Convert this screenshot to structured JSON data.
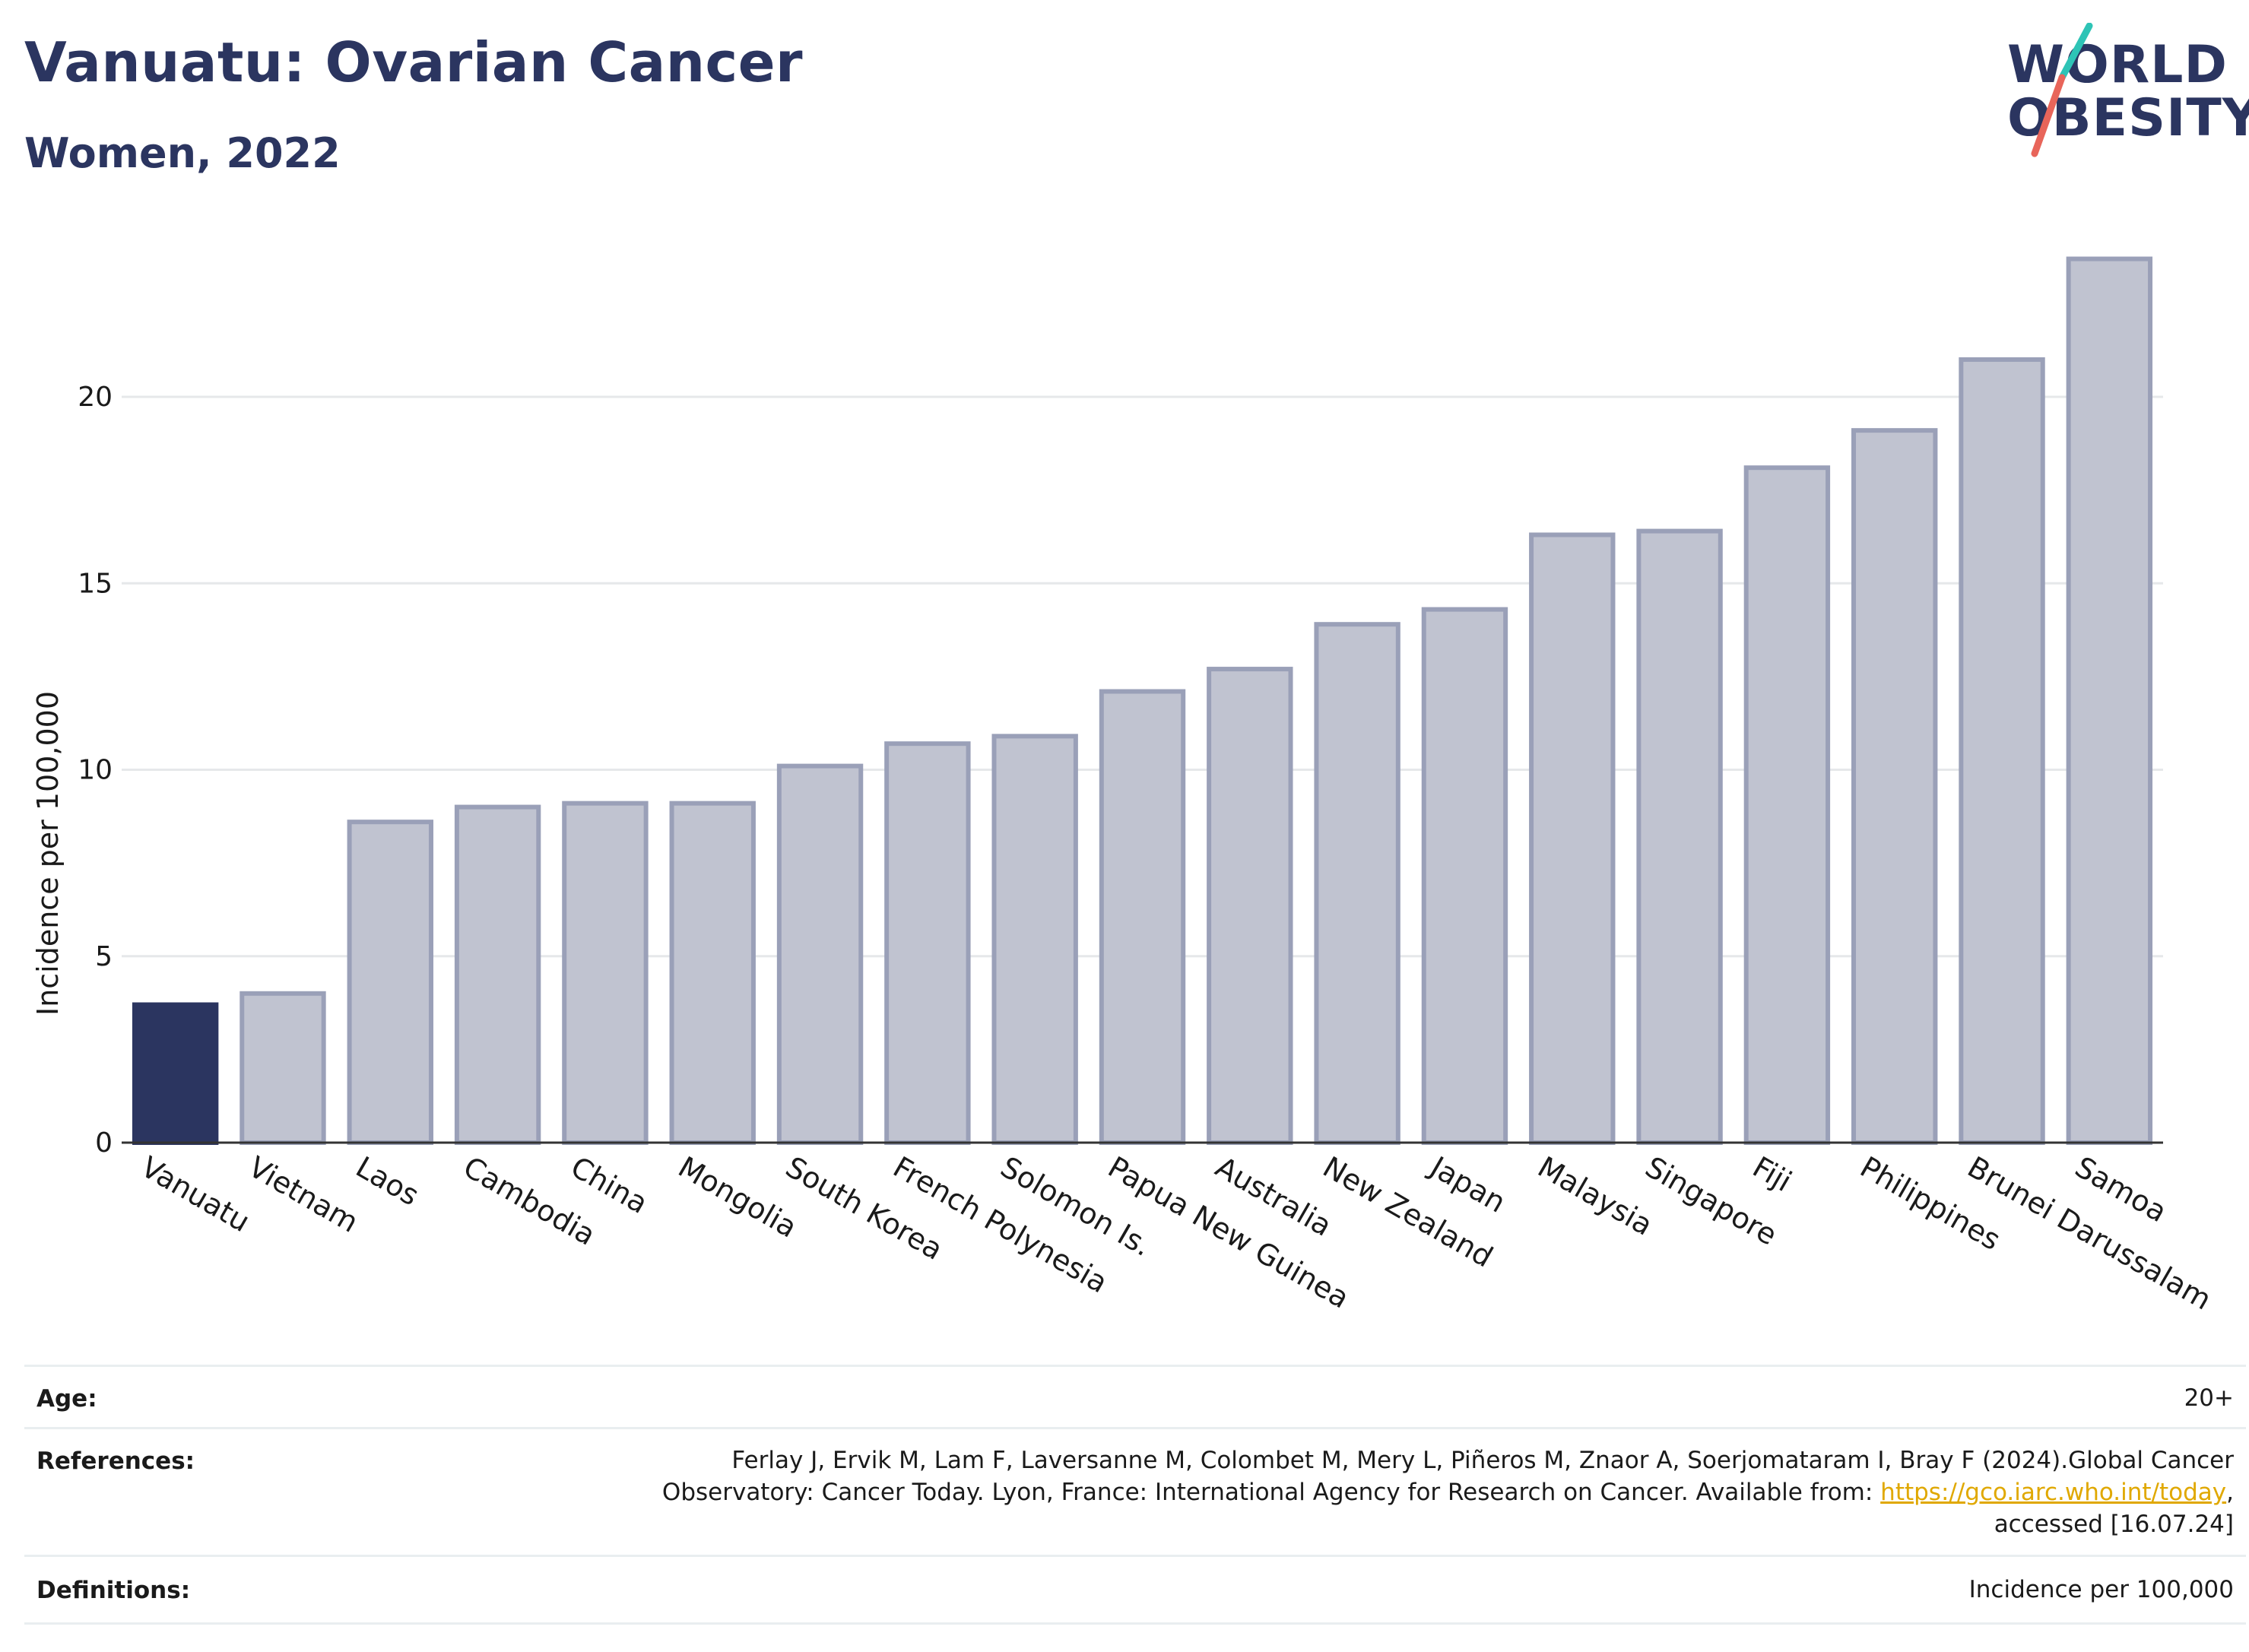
{
  "header": {
    "title": "Vanuatu: Ovarian Cancer",
    "subtitle": "Women, 2022"
  },
  "logo": {
    "line1": "WORLD",
    "line2": "OBESITY",
    "accent_colors": [
      "#2ec4b6",
      "#e8655a"
    ]
  },
  "colors": {
    "highlight_bar": "#2b3560",
    "other_bar_fill": "#c0c3d0",
    "other_bar_stroke": "#9aa0b8",
    "axis_text": "#1a1a1a",
    "gridline": "#e6e8ea",
    "link": "#e0a800"
  },
  "chart_data": {
    "type": "bar",
    "title": "",
    "ylabel": "Incidence per 100,000",
    "xlabel": "",
    "ylim": [
      0,
      24
    ],
    "yticks": [
      0,
      5,
      10,
      15,
      20
    ],
    "grid": true,
    "highlight": "Vanuatu",
    "categories": [
      "Vanuatu",
      "Vietnam",
      "Laos",
      "Cambodia",
      "China",
      "Mongolia",
      "South Korea",
      "French Polynesia",
      "Solomon Is.",
      "Papua New Guinea",
      "Australia",
      "New Zealand",
      "Japan",
      "Malaysia",
      "Singapore",
      "Fiji",
      "Philippines",
      "Brunei Darussalam",
      "Samoa"
    ],
    "values": [
      3.7,
      4.0,
      8.6,
      9.0,
      9.1,
      9.1,
      10.1,
      10.7,
      10.9,
      12.1,
      12.7,
      13.9,
      14.3,
      16.3,
      16.4,
      18.1,
      19.1,
      21.0,
      23.7
    ]
  },
  "footer": {
    "age_label": "Age:",
    "age_value": "20+",
    "references_label": "References:",
    "references_line1": "Ferlay J, Ervik M, Lam F, Laversanne M, Colombet M, Mery L, Piñeros M, Znaor A, Soerjomataram I, Bray F (2024).Global Cancer",
    "references_line2_prefix": "Observatory: Cancer Today. Lyon, France: International Agency for Research on Cancer. Available from: ",
    "references_link": "https://gco.iarc.who.int/today",
    "references_line2_suffix": ",",
    "references_line3": "accessed [16.07.24]",
    "definitions_label": "Definitions:",
    "definitions_value": "Incidence per 100,000"
  }
}
